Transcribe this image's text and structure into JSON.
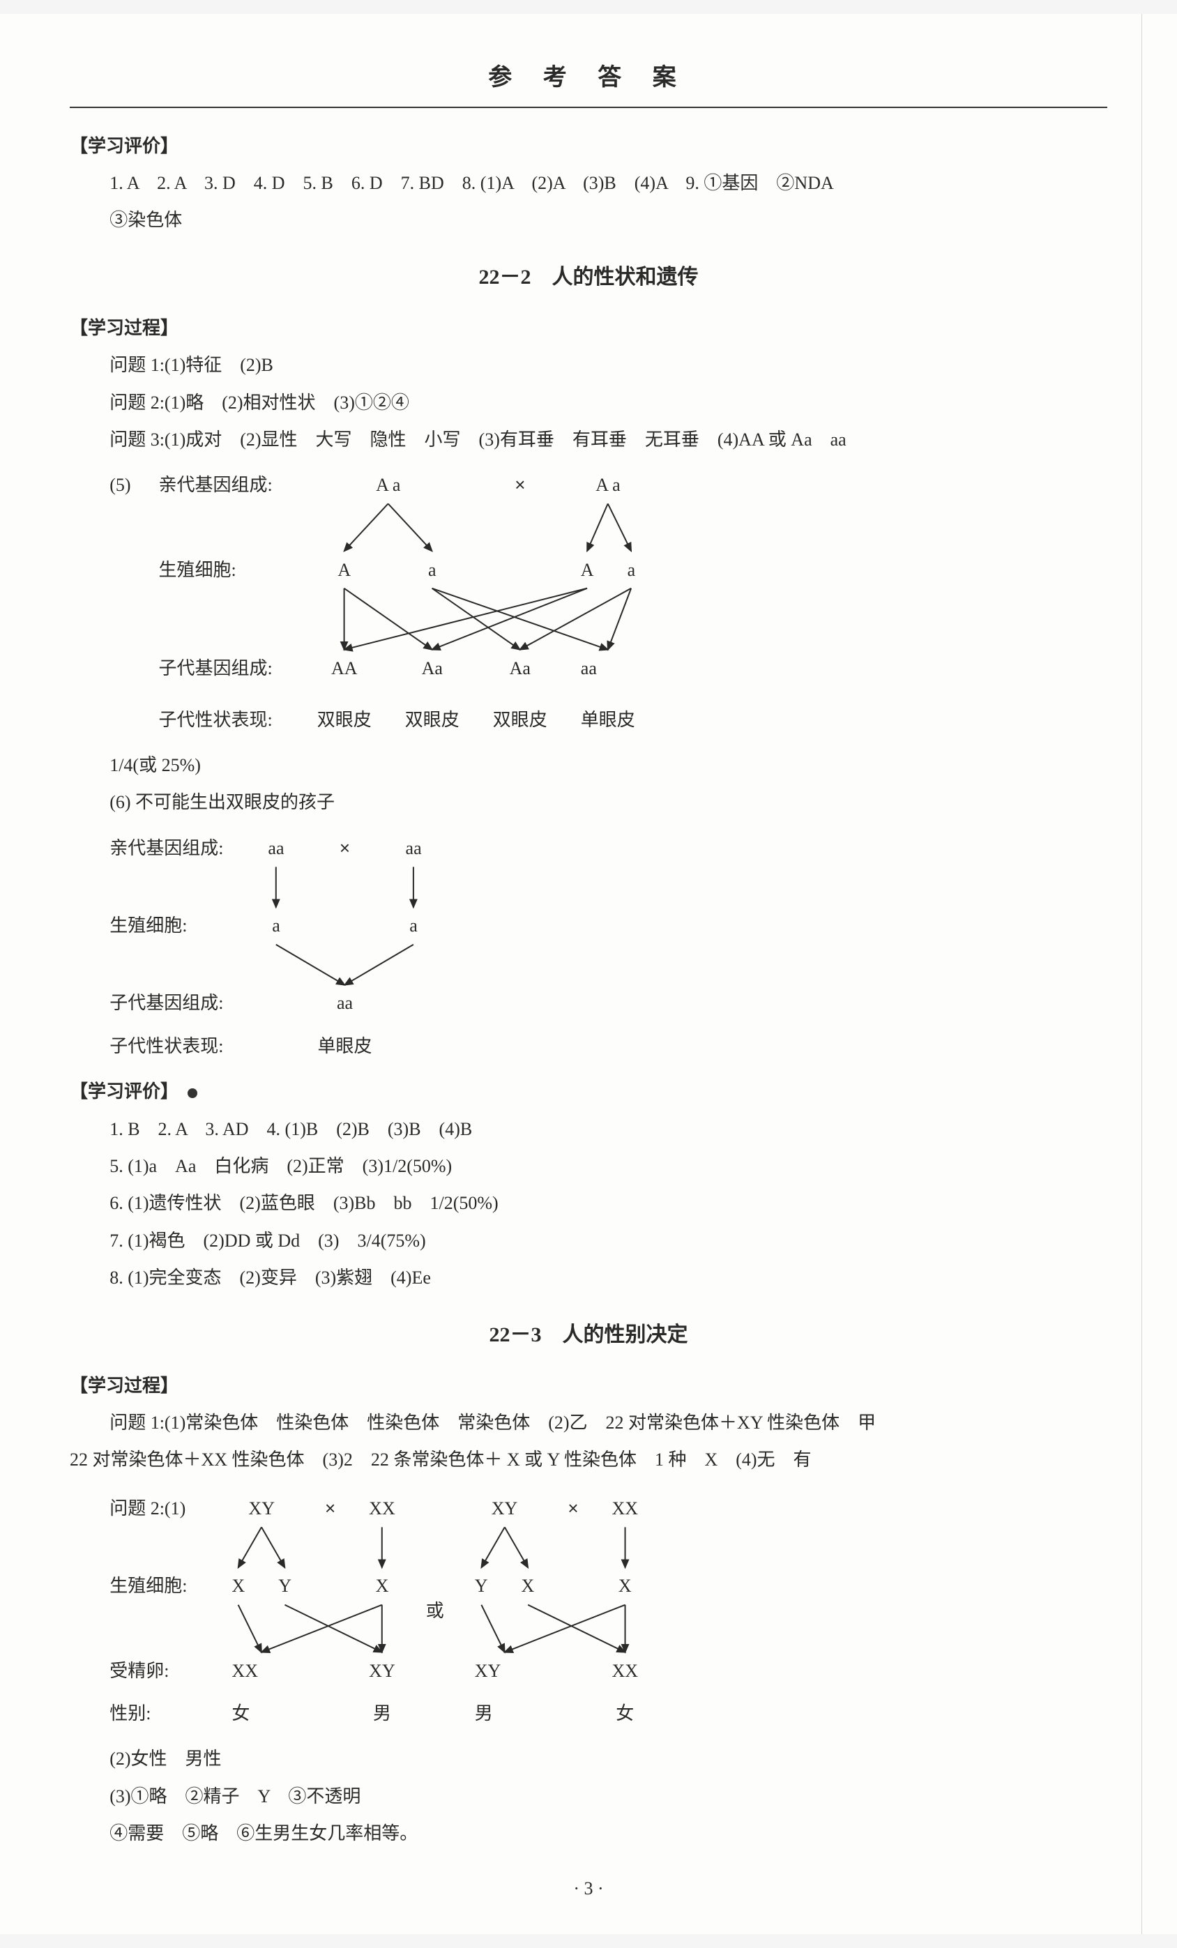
{
  "header_title": "参 考 答 案",
  "section1": {
    "heading": "【学习评价】",
    "line1": "1. A　2. A　3. D　4. D　5. B　6. D　7. BD　8. (1)A　(2)A　(3)B　(4)A　9. ①基因　②NDA",
    "line2": "③染色体"
  },
  "sub_title_1": "22－2　人的性状和遗传",
  "section2": {
    "heading": "【学习过程】",
    "q1": "问题 1:(1)特征　(2)B",
    "q2": "问题 2:(1)略　(2)相对性状　(3)①②④",
    "q3": "问题 3:(1)成对　(2)显性　大写　隐性　小写　(3)有耳垂　有耳垂　无耳垂　(4)AA 或 Aa　aa",
    "q5_prefix": "(5)",
    "diagram1": {
      "rows": [
        {
          "label": "亲代基因组成:",
          "cells": [
            "A a",
            "×",
            "A a"
          ]
        },
        {
          "label": "生殖细胞:",
          "cells": [
            "A",
            "a",
            "",
            "A",
            "a"
          ]
        },
        {
          "label": "子代基因组成:",
          "cells": [
            "AA",
            "Aa",
            "Aa",
            "aa"
          ]
        },
        {
          "label": "子代性状表现:",
          "cells": [
            "双眼皮",
            "双眼皮",
            "双眼皮",
            "单眼皮"
          ]
        }
      ],
      "arrow_color": "#2a2a2a"
    },
    "q5_tail": "1/4(或 25%)",
    "q6_head": "(6) 不可能生出双眼皮的孩子",
    "diagram2": {
      "rows": [
        {
          "label": "亲代基因组成:",
          "cells": [
            "aa",
            "×",
            "aa"
          ]
        },
        {
          "label": "生殖细胞:",
          "cells": [
            "a",
            "",
            "a"
          ]
        },
        {
          "label": "子代基因组成:",
          "cells": [
            "",
            "aa",
            ""
          ]
        },
        {
          "label": "子代性状表现:",
          "cells": [
            "",
            "单眼皮",
            ""
          ]
        }
      ],
      "arrow_color": "#2a2a2a"
    }
  },
  "section3": {
    "heading": "【学习评价】",
    "l1": "1. B　2. A　3. AD　4. (1)B　(2)B　(3)B　(4)B",
    "l2": "5. (1)a　Aa　白化病　(2)正常　(3)1/2(50%)",
    "l3": "6. (1)遗传性状　(2)蓝色眼　(3)Bb　bb　1/2(50%)",
    "l4": "7. (1)褐色　(2)DD 或 Dd　(3)　3/4(75%)",
    "l5": "8. (1)完全变态　(2)变异　(3)紫翅　(4)Ee"
  },
  "sub_title_2": "22－3　人的性别决定",
  "section4": {
    "heading": "【学习过程】",
    "q1a": "问题 1:(1)常染色体　性染色体　性染色体　常染色体　(2)乙　22 对常染色体＋XY 性染色体　甲",
    "q1b": "22 对常染色体＋XX 性染色体　(3)2　22 条常染色体＋ X 或 Y 性染色体　1 种　X　(4)无　有",
    "q2_head": "问题 2:(1)",
    "diagram3_left": {
      "rows": [
        {
          "label": "",
          "cells": [
            "XY",
            "×",
            "XX"
          ]
        },
        {
          "label": "生殖细胞:",
          "cells": [
            "X",
            "Y",
            "",
            "X"
          ]
        },
        {
          "label": "受精卵:",
          "cells": [
            "XX",
            "",
            "XY"
          ]
        },
        {
          "label": "性别:",
          "cells": [
            "女",
            "",
            "男"
          ]
        }
      ]
    },
    "diagram3_right": {
      "rows": [
        {
          "label": "",
          "cells": [
            "XY",
            "×",
            "XX"
          ]
        },
        {
          "label": "",
          "cells": [
            "Y",
            "X",
            "",
            "X"
          ]
        },
        {
          "label": "",
          "cells": [
            "XY",
            "",
            "XX"
          ]
        },
        {
          "label": "",
          "cells": [
            "男",
            "",
            "女"
          ]
        }
      ]
    },
    "or_label": "或",
    "q2_2": "(2)女性　男性",
    "q2_3": "(3)①略　②精子　Y　③不透明",
    "q2_4": "④需要　⑤略　⑥生男生女几率相等。"
  },
  "page_number": "· 3 ·",
  "colors": {
    "text": "#2a2a2a",
    "page_bg": "#fdfdfb",
    "rule": "#333333"
  },
  "fontsize_body": 26,
  "fontsize_title": 34,
  "fontsize_subtitle": 30
}
